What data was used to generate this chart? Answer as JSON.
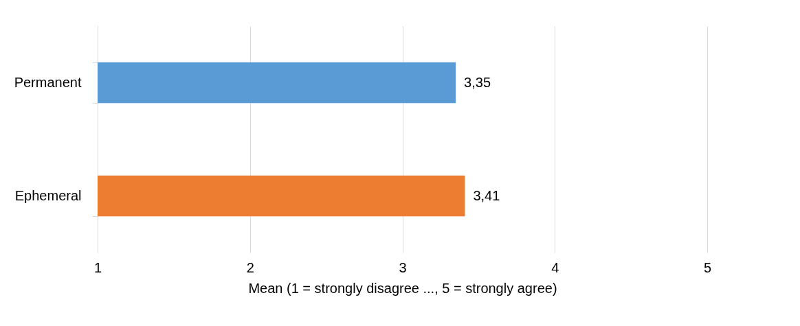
{
  "chart_data": {
    "type": "bar",
    "orientation": "horizontal",
    "categories": [
      "Permanent",
      "Ephemeral"
    ],
    "values": [
      3.35,
      3.41
    ],
    "value_labels": [
      "3,35",
      "3,41"
    ],
    "colors": [
      "#5b9bd5",
      "#ed7d31"
    ],
    "xlim": [
      1,
      5
    ],
    "xticks": [
      1,
      2,
      3,
      4,
      5
    ],
    "grid": "x",
    "xlabel": "Mean (1 = strongly disagree ..., 5 = strongly agree)"
  }
}
